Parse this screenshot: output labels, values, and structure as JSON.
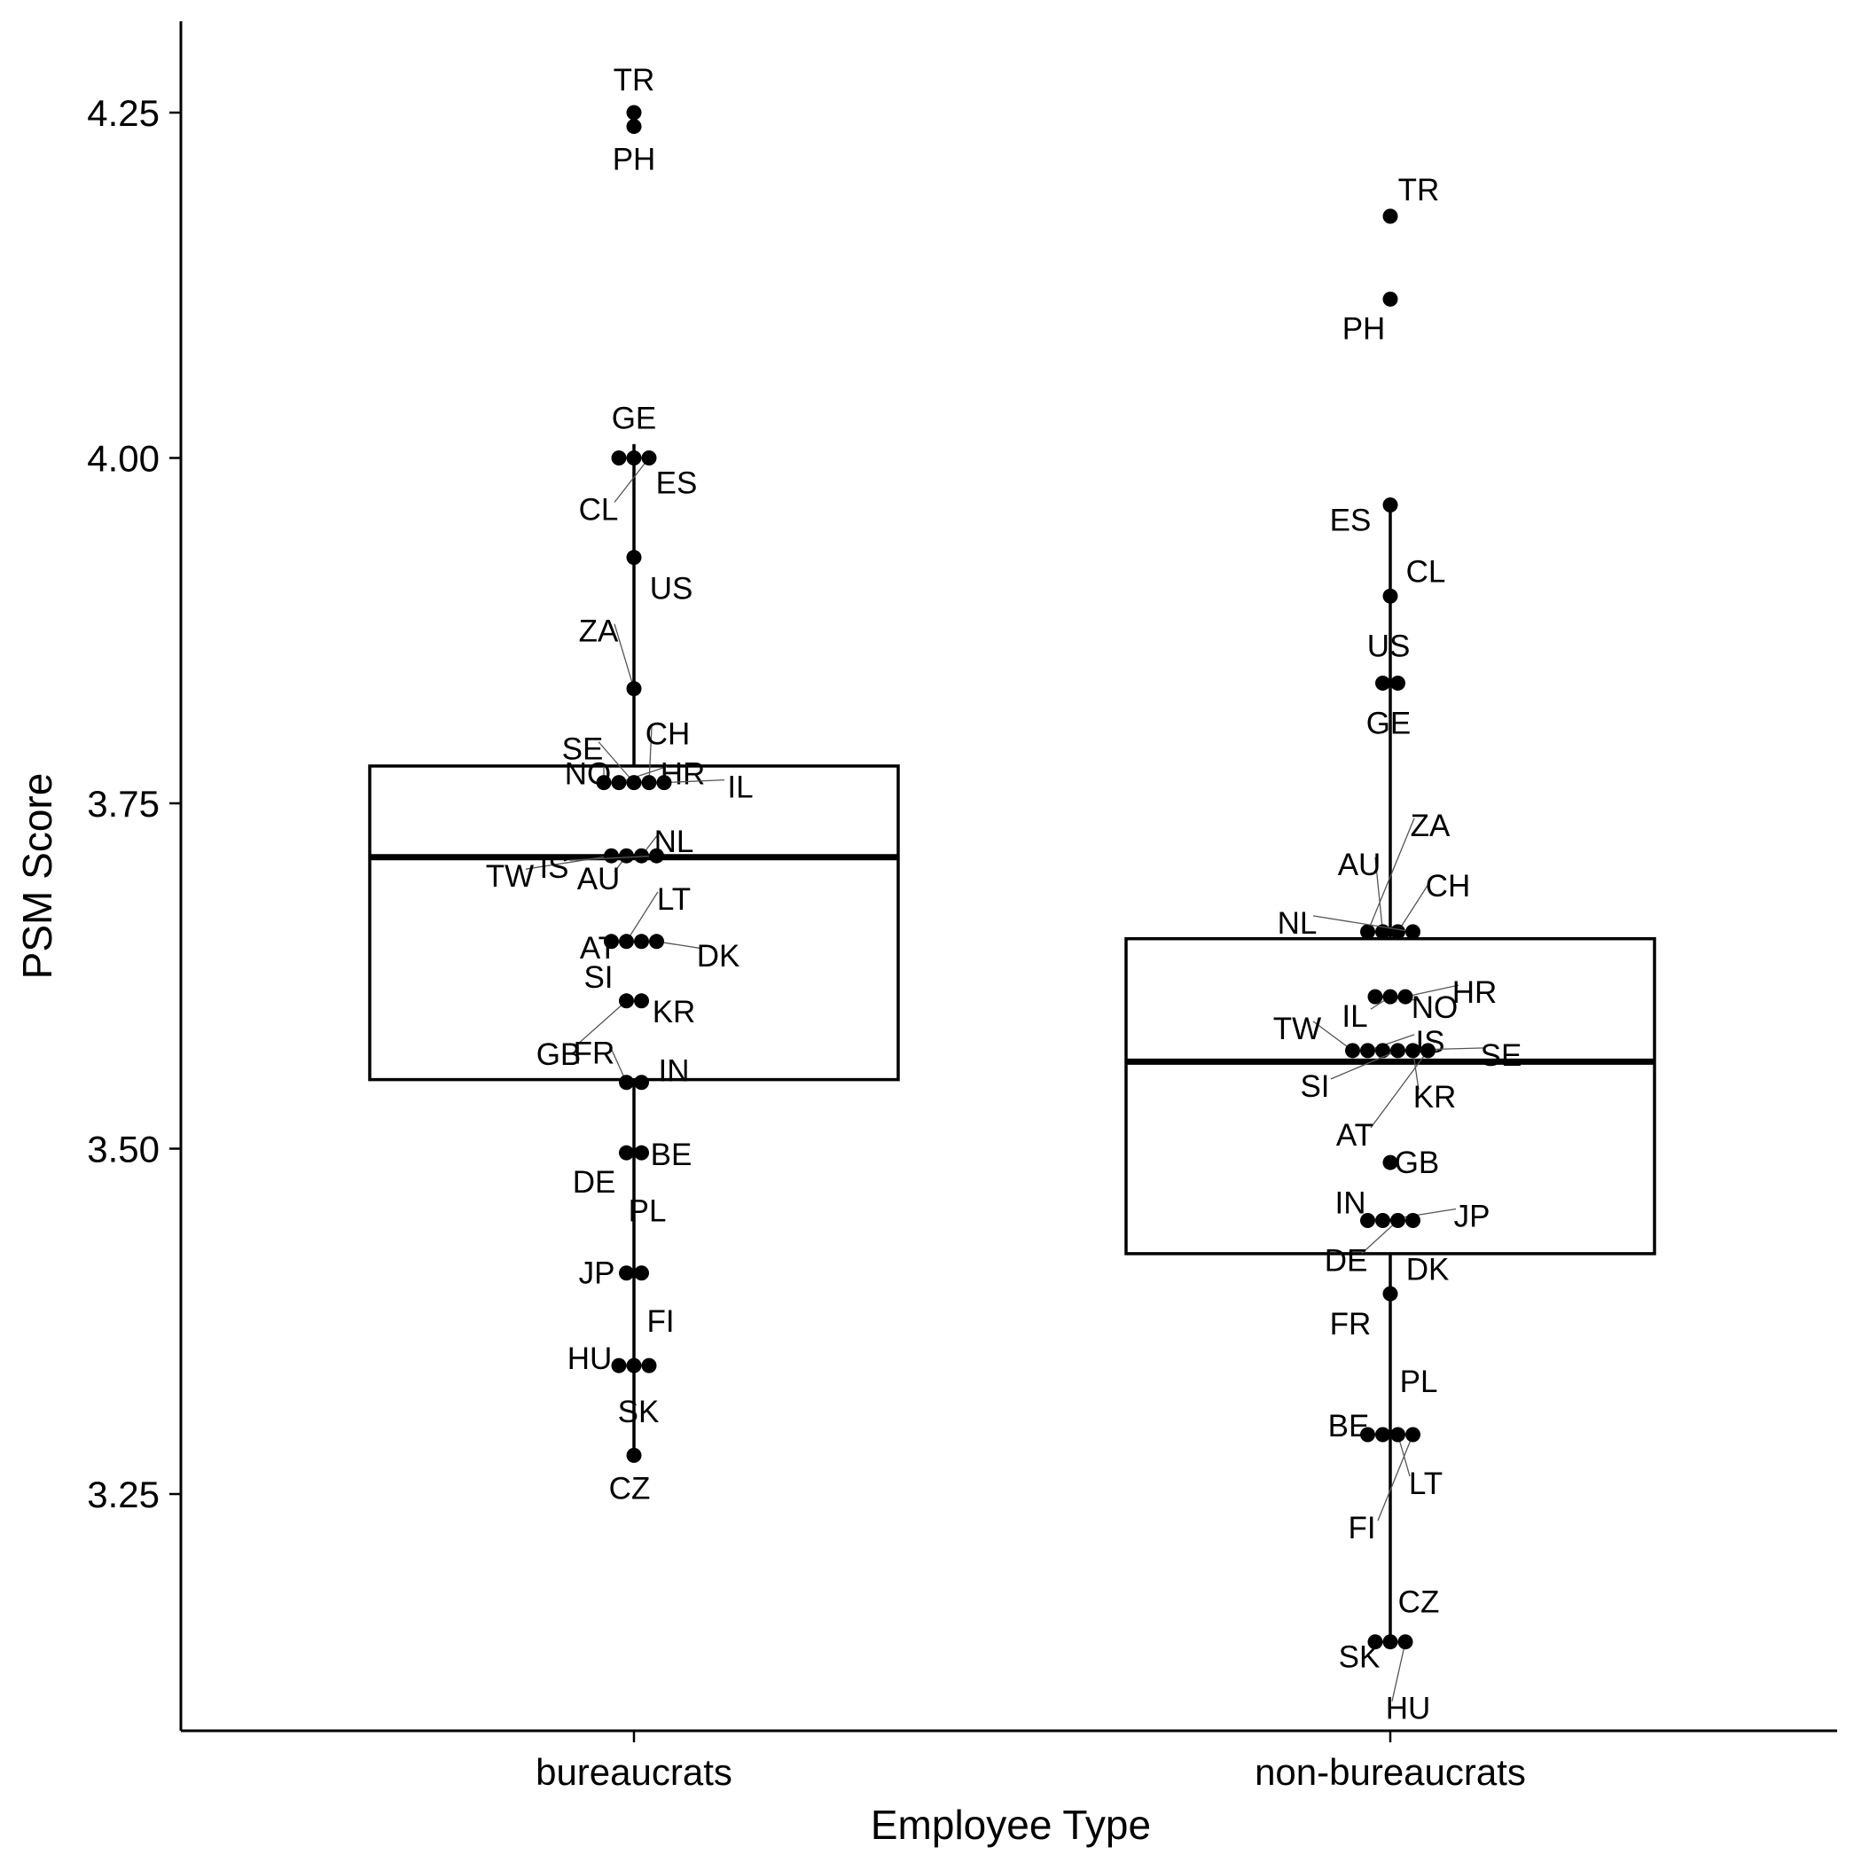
{
  "chart_data": {
    "type": "box",
    "xlabel": "Employee Type",
    "ylabel": "PSM Score",
    "categories": [
      "bureaucrats",
      "non-bureaucrats"
    ],
    "ylim": [
      3.075,
      4.315
    ],
    "yticks": [
      3.25,
      3.5,
      3.75,
      4.0,
      4.25
    ],
    "ytick_labels": [
      "3.25",
      "3.50",
      "3.75",
      "4.00",
      "4.25"
    ],
    "grid": false,
    "legend": "none",
    "colors": {
      "points": "#000000",
      "box": "#000000"
    },
    "boxes": [
      {
        "category": "bureaucrats",
        "q1": 3.55,
        "median": 3.711,
        "q3": 3.777,
        "whisker_low": 3.278,
        "whisker_high": 4.01
      },
      {
        "category": "non-bureaucrats",
        "q1": 3.424,
        "median": 3.563,
        "q3": 3.652,
        "whisker_low": 3.143,
        "whisker_high": 3.966
      }
    ],
    "series": [
      {
        "category": "bureaucrats",
        "points": [
          {
            "label": "TR",
            "value": 4.25
          },
          {
            "label": "PH",
            "value": 4.24
          },
          {
            "label": "GE",
            "value": 4.0
          },
          {
            "label": "ES",
            "value": 4.0
          },
          {
            "label": "CL",
            "value": 4.0
          },
          {
            "label": "US",
            "value": 3.928
          },
          {
            "label": "ZA",
            "value": 3.833
          },
          {
            "label": "NO",
            "value": 3.765
          },
          {
            "label": "HR",
            "value": 3.765
          },
          {
            "label": "SE",
            "value": 3.765
          },
          {
            "label": "CH",
            "value": 3.765
          },
          {
            "label": "IL",
            "value": 3.765
          },
          {
            "label": "TW",
            "value": 3.712
          },
          {
            "label": "AU",
            "value": 3.712
          },
          {
            "label": "NL",
            "value": 3.712
          },
          {
            "label": "IS",
            "value": 3.712
          },
          {
            "label": "SI",
            "value": 3.65
          },
          {
            "label": "LT",
            "value": 3.65
          },
          {
            "label": "AT",
            "value": 3.65
          },
          {
            "label": "DK",
            "value": 3.65
          },
          {
            "label": "GB",
            "value": 3.607
          },
          {
            "label": "KR",
            "value": 3.607
          },
          {
            "label": "FR",
            "value": 3.548
          },
          {
            "label": "IN",
            "value": 3.548
          },
          {
            "label": "DE",
            "value": 3.497
          },
          {
            "label": "BE",
            "value": 3.497
          },
          {
            "label": "PL",
            "value": 3.41
          },
          {
            "label": "JP",
            "value": 3.41
          },
          {
            "label": "FI",
            "value": 3.343
          },
          {
            "label": "HU",
            "value": 3.343
          },
          {
            "label": "SK",
            "value": 3.343
          },
          {
            "label": "CZ",
            "value": 3.278
          }
        ]
      },
      {
        "category": "non-bureaucrats",
        "points": [
          {
            "label": "TR",
            "value": 4.175
          },
          {
            "label": "PH",
            "value": 4.115
          },
          {
            "label": "ES",
            "value": 3.966
          },
          {
            "label": "CL",
            "value": 3.9
          },
          {
            "label": "US",
            "value": 3.837
          },
          {
            "label": "GE",
            "value": 3.837
          },
          {
            "label": "ZA",
            "value": 3.657
          },
          {
            "label": "AU",
            "value": 3.657
          },
          {
            "label": "CH",
            "value": 3.657
          },
          {
            "label": "NL",
            "value": 3.657
          },
          {
            "label": "NO",
            "value": 3.61
          },
          {
            "label": "IL",
            "value": 3.61
          },
          {
            "label": "HR",
            "value": 3.61
          },
          {
            "label": "TW",
            "value": 3.571
          },
          {
            "label": "IS",
            "value": 3.571
          },
          {
            "label": "SE",
            "value": 3.571
          },
          {
            "label": "SI",
            "value": 3.571
          },
          {
            "label": "KR",
            "value": 3.571
          },
          {
            "label": "AT",
            "value": 3.571
          },
          {
            "label": "GB",
            "value": 3.49
          },
          {
            "label": "IN",
            "value": 3.448
          },
          {
            "label": "JP",
            "value": 3.448
          },
          {
            "label": "DE",
            "value": 3.448
          },
          {
            "label": "DK",
            "value": 3.448
          },
          {
            "label": "FR",
            "value": 3.395
          },
          {
            "label": "PL",
            "value": 3.293
          },
          {
            "label": "BE",
            "value": 3.293
          },
          {
            "label": "LT",
            "value": 3.293
          },
          {
            "label": "FI",
            "value": 3.293
          },
          {
            "label": "CZ",
            "value": 3.143
          },
          {
            "label": "SK",
            "value": 3.143
          },
          {
            "label": "HU",
            "value": 3.143
          }
        ]
      }
    ]
  }
}
